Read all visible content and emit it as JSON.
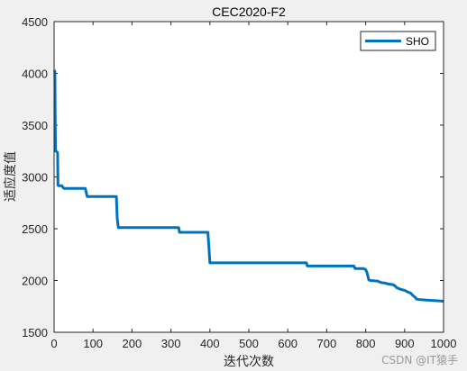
{
  "watermark": "CSDN @IT猿手",
  "chart_data": {
    "type": "line",
    "title": "CEC2020-F2",
    "xlabel": "迭代次数",
    "ylabel": "适应度值",
    "xlim": [
      0,
      1000
    ],
    "ylim": [
      1500,
      4500
    ],
    "xticks": [
      0,
      100,
      200,
      300,
      400,
      500,
      600,
      700,
      800,
      900,
      1000
    ],
    "yticks": [
      1500,
      2000,
      2500,
      3000,
      3500,
      4000,
      4500
    ],
    "grid": false,
    "legend_position": "top-right",
    "line_color": "#0072bd",
    "series": [
      {
        "name": "SHO",
        "x": [
          0,
          2,
          3,
          4,
          6,
          8,
          9,
          10,
          12,
          15,
          20,
          25,
          30,
          80,
          85,
          160,
          162,
          165,
          320,
          322,
          395,
          398,
          400,
          405,
          648,
          650,
          655,
          770,
          773,
          795,
          800,
          803,
          808,
          812,
          830,
          840,
          850,
          860,
          870,
          875,
          880,
          890,
          900,
          905,
          910,
          915,
          920,
          928,
          930,
          940,
          960,
          980,
          1000
        ],
        "y": [
          4030,
          4020,
          3500,
          3250,
          3245,
          3240,
          3230,
          2920,
          2915,
          2915,
          2915,
          2890,
          2890,
          2890,
          2810,
          2810,
          2600,
          2510,
          2510,
          2465,
          2465,
          2300,
          2170,
          2170,
          2170,
          2140,
          2140,
          2140,
          2115,
          2115,
          2105,
          2080,
          2005,
          2000,
          1995,
          1980,
          1975,
          1965,
          1960,
          1950,
          1930,
          1915,
          1905,
          1895,
          1885,
          1880,
          1860,
          1835,
          1820,
          1815,
          1810,
          1805,
          1800
        ]
      }
    ]
  }
}
